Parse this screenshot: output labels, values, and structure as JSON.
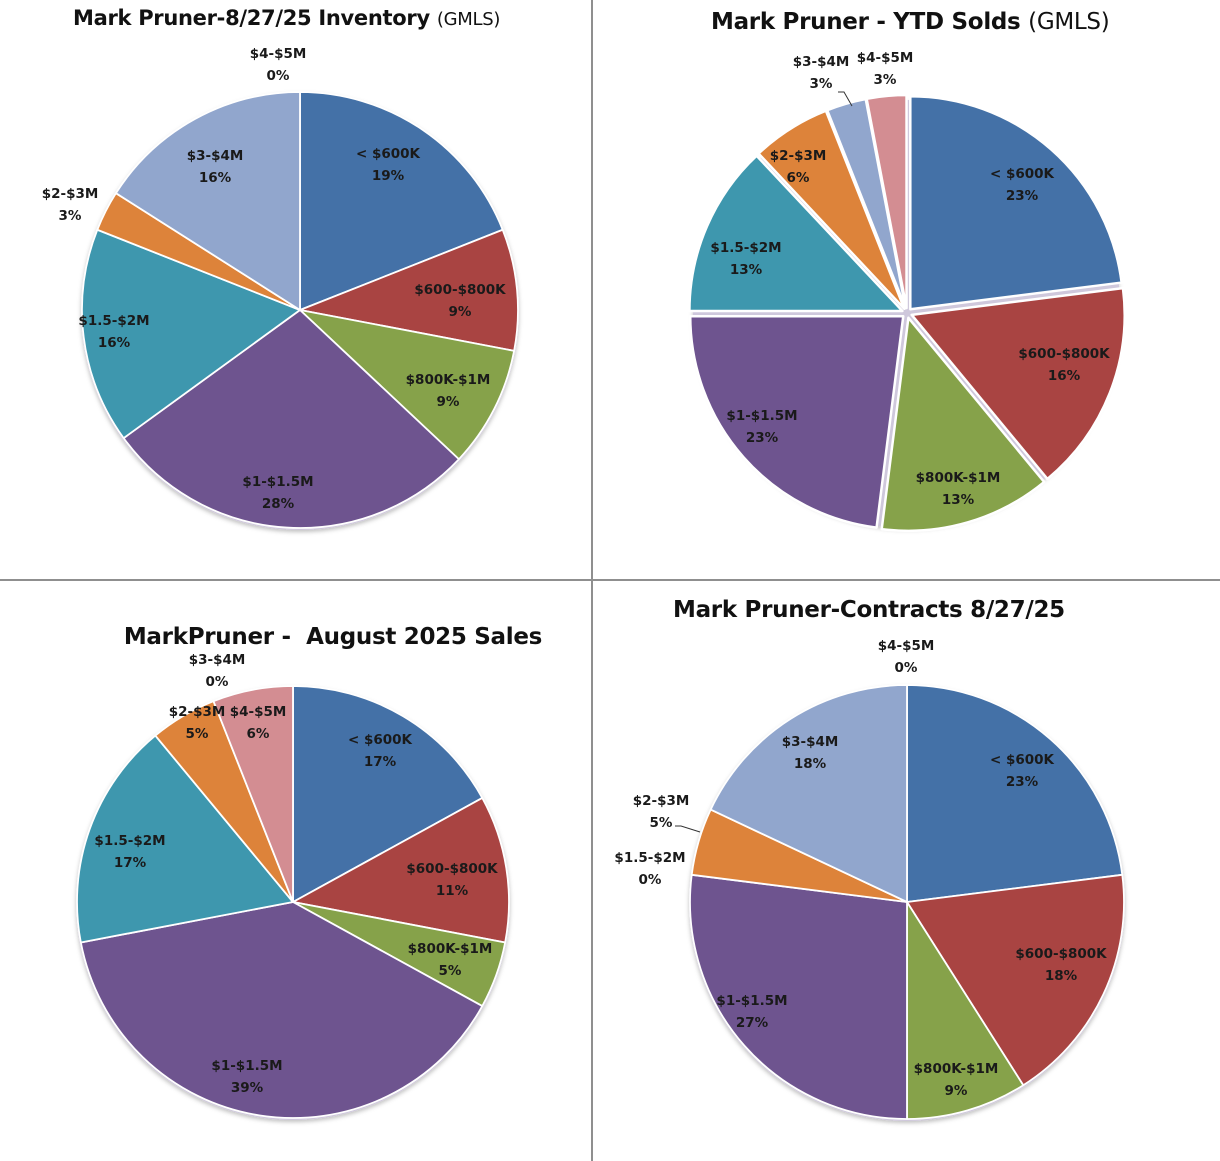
{
  "colors": {
    "lt600k": "#4471a7",
    "600_800k": "#a94442",
    "800k_1m": "#86a24a",
    "1_1_5m": "#6e548f",
    "1_5_2m": "#3e97ae",
    "2_3m": "#dd833a",
    "3_4m": "#91a6cd",
    "4_5m": "#d38d92",
    "divider": "#8f8f8f"
  },
  "chart_data": [
    {
      "type": "pie",
      "title": "Mark Pruner-8/27/25 Inventory",
      "title_suffix": "(GMLS)",
      "categories": [
        "< $600K",
        "$600-$800K",
        "$800K-$1M",
        "$1-$1.5M",
        "$1.5-$2M",
        "$2-$3M",
        "$3-$4M",
        "$4-$5M"
      ],
      "values": [
        19,
        9,
        9,
        28,
        16,
        3,
        16,
        0
      ],
      "value_labels": [
        "19%",
        "9%",
        "9%",
        "28%",
        "16%",
        "3%",
        "16%",
        "0%"
      ],
      "start": "12 o'clock",
      "direction": "clockwise",
      "exploded": false
    },
    {
      "type": "pie",
      "title": "Mark Pruner - YTD Solds",
      "title_suffix": "(GMLS)",
      "categories": [
        "< $600K",
        "$600-$800K",
        "$800K-$1M",
        "$1-$1.5M",
        "$1.5-$2M",
        "$2-$3M",
        "$3-$4M",
        "$4-$5M"
      ],
      "values": [
        23,
        16,
        13,
        23,
        13,
        6,
        3,
        3
      ],
      "value_labels": [
        "23%",
        "16%",
        "13%",
        "23%",
        "13%",
        "6%",
        "3%",
        "3%"
      ],
      "start": "12 o'clock",
      "direction": "clockwise",
      "exploded": true
    },
    {
      "type": "pie",
      "title": "MarkPruner -  August 2025 Sales",
      "title_suffix": "",
      "categories": [
        "< $600K",
        "$600-$800K",
        "$800K-$1M",
        "$1-$1.5M",
        "$1.5-$2M",
        "$2-$3M",
        "$3-$4M",
        "$4-$5M"
      ],
      "values": [
        17,
        11,
        5,
        39,
        17,
        5,
        0,
        6
      ],
      "value_labels": [
        "17%",
        "11%",
        "5%",
        "39%",
        "17%",
        "5%",
        "0%",
        "6%"
      ],
      "start": "12 o'clock",
      "direction": "clockwise",
      "exploded": false
    },
    {
      "type": "pie",
      "title": "Mark Pruner-Contracts 8/27/25",
      "title_suffix": "",
      "categories": [
        "< $600K",
        "$600-$800K",
        "$800K-$1M",
        "$1-$1.5M",
        "$1.5-$2M",
        "$2-$3M",
        "$3-$4M",
        "$4-$5M"
      ],
      "values": [
        23,
        18,
        9,
        27,
        0,
        5,
        18,
        0
      ],
      "value_labels": [
        "23%",
        "18%",
        "9%",
        "27%",
        "0%",
        "5%",
        "18%",
        "0%"
      ],
      "start": "12 o'clock",
      "direction": "clockwise",
      "exploded": false
    }
  ]
}
